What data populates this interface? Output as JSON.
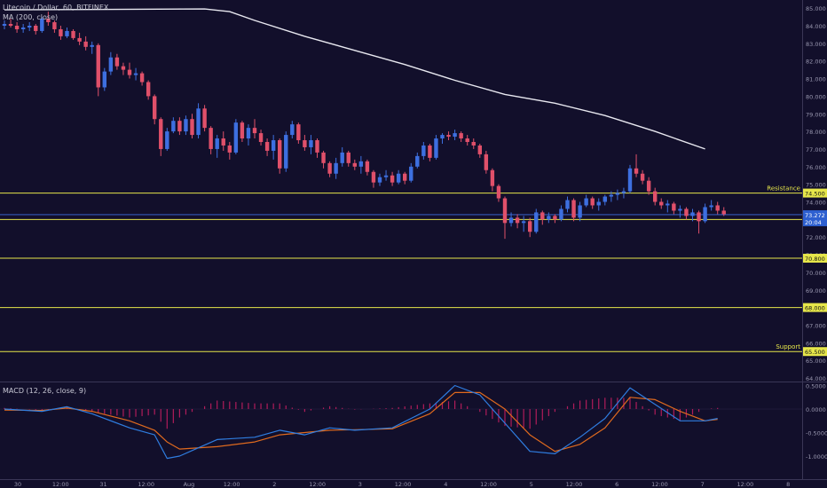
{
  "header": {
    "symbol": "Litecoin / Dollar, 60, BITFINEX",
    "ma_label": "MA (200, close)"
  },
  "macd_label": "MACD (12, 26, close, 9)",
  "colors": {
    "background": "#120f2b",
    "up_candle": "#3d6fe0",
    "down_candle": "#e0506a",
    "ma_line": "#e8e8f0",
    "level_line": "#e6e64a",
    "price_line": "#3d6fe0",
    "macd_line": "#2f7de0",
    "signal_line": "#e06a1e",
    "histogram": "#b01c5a"
  },
  "chart_data": [
    {
      "type": "candlestick",
      "panel": "price",
      "ylim": [
        63,
        85
      ],
      "y_ticks": [
        "64.000",
        "65.000",
        "66.000",
        "67.000",
        "68.000",
        "69.000",
        "70.000",
        "71.000",
        "72.000",
        "73.000",
        "74.000",
        "75.000",
        "76.000",
        "77.000",
        "78.000",
        "79.000",
        "80.000",
        "81.000",
        "82.000",
        "83.000",
        "84.000",
        "85.000"
      ],
      "x_ticks": [
        "30",
        "12:00",
        "31",
        "12:00",
        "Aug",
        "12:00",
        "2",
        "12:00",
        "3",
        "12:00",
        "4",
        "12:00",
        "5",
        "12:00",
        "6",
        "12:00",
        "7",
        "12:00",
        "8"
      ],
      "levels": [
        {
          "value": 74.5,
          "label": "74.500",
          "annotation": "Resistance"
        },
        {
          "value": 73.0,
          "label": "73.000",
          "annotation": ""
        },
        {
          "value": 70.8,
          "label": "70.800",
          "annotation": ""
        },
        {
          "value": 68.0,
          "label": "68.000",
          "annotation": ""
        },
        {
          "value": 65.5,
          "label": "65.500",
          "annotation": "Support"
        }
      ],
      "last_price": {
        "value": 73.272,
        "label": "73.272",
        "countdown": "20:04"
      },
      "moving_average": {
        "name": "MA (200, close)",
        "points": [
          [
            0,
            84.9
          ],
          [
            16,
            84.95
          ],
          [
            18,
            84.8
          ],
          [
            20,
            84.3
          ],
          [
            24,
            83.4
          ],
          [
            28,
            82.6
          ],
          [
            32,
            81.8
          ],
          [
            36,
            80.9
          ],
          [
            40,
            80.1
          ],
          [
            44,
            79.6
          ],
          [
            48,
            78.9
          ],
          [
            52,
            78.0
          ],
          [
            56,
            77.0
          ]
        ]
      },
      "candles": [
        [
          0.0,
          84.0,
          84.3,
          83.8,
          84.1
        ],
        [
          0.5,
          84.1,
          84.4,
          83.9,
          84.0
        ],
        [
          1.0,
          84.0,
          84.2,
          83.6,
          83.8
        ],
        [
          1.5,
          83.8,
          84.1,
          83.6,
          83.9
        ],
        [
          2.0,
          83.9,
          84.2,
          83.7,
          84.0
        ],
        [
          2.5,
          84.0,
          84.1,
          83.5,
          83.7
        ],
        [
          3.0,
          83.7,
          84.5,
          83.6,
          84.4
        ],
        [
          3.5,
          84.4,
          84.8,
          84.0,
          84.2
        ],
        [
          4.0,
          84.2,
          84.3,
          83.6,
          83.8
        ],
        [
          4.5,
          83.8,
          84.0,
          83.2,
          83.4
        ],
        [
          5.0,
          83.4,
          83.9,
          83.3,
          83.7
        ],
        [
          5.5,
          83.7,
          83.8,
          83.2,
          83.3
        ],
        [
          6.0,
          83.3,
          83.6,
          82.9,
          83.1
        ],
        [
          6.5,
          83.1,
          83.4,
          82.6,
          82.8
        ],
        [
          7.0,
          82.8,
          83.1,
          82.4,
          82.9
        ],
        [
          7.5,
          82.9,
          83.0,
          80.0,
          80.5
        ],
        [
          8.0,
          80.5,
          81.6,
          80.3,
          81.4
        ],
        [
          8.5,
          81.4,
          82.5,
          81.2,
          82.2
        ],
        [
          9.0,
          82.2,
          82.4,
          81.5,
          81.7
        ],
        [
          9.5,
          81.7,
          81.9,
          81.2,
          81.5
        ],
        [
          10.0,
          81.5,
          81.9,
          81.0,
          81.2
        ],
        [
          10.5,
          81.2,
          81.6,
          80.9,
          81.3
        ],
        [
          11.0,
          81.3,
          81.4,
          80.6,
          80.8
        ],
        [
          11.5,
          80.8,
          80.9,
          79.8,
          80.0
        ],
        [
          12.0,
          80.0,
          80.1,
          78.4,
          78.7
        ],
        [
          12.5,
          78.7,
          78.8,
          76.6,
          77.0
        ],
        [
          13.0,
          77.0,
          78.2,
          76.9,
          78.0
        ],
        [
          13.5,
          78.0,
          78.8,
          77.9,
          78.6
        ],
        [
          14.0,
          78.6,
          78.8,
          77.8,
          78.0
        ],
        [
          14.5,
          78.0,
          78.9,
          77.8,
          78.7
        ],
        [
          15.0,
          78.7,
          79.0,
          77.6,
          77.8
        ],
        [
          15.5,
          77.8,
          79.6,
          77.6,
          79.3
        ],
        [
          16.0,
          79.3,
          79.5,
          78.0,
          78.2
        ],
        [
          16.5,
          78.2,
          78.3,
          76.7,
          77.0
        ],
        [
          17.0,
          77.0,
          77.8,
          76.5,
          77.6
        ],
        [
          17.5,
          77.6,
          78.0,
          76.9,
          77.2
        ],
        [
          18.0,
          77.2,
          77.4,
          76.4,
          76.8
        ],
        [
          18.5,
          76.8,
          78.7,
          76.7,
          78.5
        ],
        [
          19.0,
          78.5,
          78.6,
          77.4,
          77.6
        ],
        [
          19.5,
          77.6,
          78.4,
          77.2,
          78.2
        ],
        [
          20.0,
          78.2,
          78.7,
          77.6,
          77.9
        ],
        [
          20.5,
          77.9,
          78.1,
          77.2,
          77.4
        ],
        [
          21.0,
          77.4,
          77.6,
          76.6,
          76.9
        ],
        [
          21.5,
          76.9,
          77.8,
          76.4,
          77.5
        ],
        [
          22.0,
          77.5,
          77.6,
          75.6,
          75.9
        ],
        [
          22.5,
          75.9,
          78.0,
          75.7,
          77.8
        ],
        [
          23.0,
          77.8,
          78.6,
          77.6,
          78.4
        ],
        [
          23.5,
          78.4,
          78.5,
          77.3,
          77.5
        ],
        [
          24.0,
          77.5,
          77.8,
          76.9,
          77.1
        ],
        [
          24.5,
          77.1,
          77.8,
          76.7,
          77.5
        ],
        [
          25.0,
          77.5,
          77.6,
          76.5,
          76.8
        ],
        [
          25.5,
          76.8,
          76.9,
          75.9,
          76.2
        ],
        [
          26.0,
          76.2,
          76.3,
          75.4,
          75.6
        ],
        [
          26.5,
          75.6,
          76.5,
          75.3,
          76.2
        ],
        [
          27.0,
          76.2,
          77.1,
          76.0,
          76.8
        ],
        [
          27.5,
          76.8,
          76.9,
          76.0,
          76.2
        ],
        [
          28.0,
          76.2,
          76.4,
          75.8,
          76.0
        ],
        [
          28.5,
          76.0,
          76.6,
          75.6,
          76.3
        ],
        [
          29.0,
          76.3,
          76.4,
          75.5,
          75.7
        ],
        [
          29.5,
          75.7,
          75.8,
          74.8,
          75.1
        ],
        [
          30.0,
          75.1,
          75.6,
          74.9,
          75.4
        ],
        [
          30.5,
          75.4,
          75.8,
          75.2,
          75.5
        ],
        [
          31.0,
          75.5,
          75.7,
          74.9,
          75.1
        ],
        [
          31.5,
          75.1,
          75.8,
          75.0,
          75.6
        ],
        [
          32.0,
          75.6,
          75.7,
          75.0,
          75.2
        ],
        [
          32.5,
          75.2,
          76.2,
          75.1,
          76.0
        ],
        [
          33.0,
          76.0,
          76.8,
          75.9,
          76.6
        ],
        [
          33.5,
          76.6,
          77.4,
          76.4,
          77.2
        ],
        [
          34.0,
          77.2,
          77.3,
          76.3,
          76.5
        ],
        [
          34.5,
          76.5,
          77.8,
          76.4,
          77.6
        ],
        [
          35.0,
          77.6,
          77.9,
          77.3,
          77.8
        ],
        [
          35.5,
          77.8,
          78.0,
          77.5,
          77.7
        ],
        [
          36.0,
          77.7,
          78.1,
          77.5,
          77.9
        ],
        [
          36.5,
          77.9,
          78.0,
          77.4,
          77.6
        ],
        [
          37.0,
          77.6,
          77.8,
          77.2,
          77.4
        ],
        [
          37.5,
          77.4,
          77.6,
          77.0,
          77.2
        ],
        [
          38.0,
          77.2,
          77.3,
          76.5,
          76.7
        ],
        [
          38.5,
          76.7,
          76.9,
          75.6,
          75.8
        ],
        [
          39.0,
          75.8,
          75.9,
          74.6,
          74.9
        ],
        [
          39.5,
          74.9,
          75.0,
          74.0,
          74.2
        ],
        [
          40.0,
          74.2,
          74.3,
          71.9,
          72.8
        ],
        [
          40.5,
          72.8,
          73.4,
          72.6,
          73.1
        ],
        [
          41.0,
          73.1,
          73.3,
          72.5,
          72.8
        ],
        [
          41.5,
          72.8,
          73.2,
          72.3,
          72.9
        ],
        [
          42.0,
          72.9,
          73.1,
          72.0,
          72.3
        ],
        [
          42.5,
          72.3,
          73.6,
          72.2,
          73.4
        ],
        [
          43.0,
          73.4,
          73.5,
          72.7,
          73.0
        ],
        [
          43.5,
          73.0,
          73.4,
          72.8,
          73.2
        ],
        [
          44.0,
          73.2,
          73.3,
          72.8,
          73.0
        ],
        [
          44.5,
          73.0,
          73.8,
          72.9,
          73.6
        ],
        [
          45.0,
          73.6,
          74.3,
          73.4,
          74.1
        ],
        [
          45.5,
          74.1,
          74.2,
          72.9,
          73.1
        ],
        [
          46.0,
          73.1,
          74.0,
          72.9,
          73.8
        ],
        [
          46.5,
          73.8,
          74.4,
          73.7,
          74.2
        ],
        [
          47.0,
          74.2,
          74.3,
          73.6,
          73.8
        ],
        [
          47.5,
          73.8,
          74.2,
          73.5,
          74.0
        ],
        [
          48.0,
          74.0,
          74.4,
          73.8,
          74.3
        ],
        [
          48.5,
          74.3,
          74.6,
          74.0,
          74.4
        ],
        [
          49.0,
          74.4,
          74.7,
          74.1,
          74.5
        ],
        [
          49.5,
          74.5,
          74.8,
          74.2,
          74.6
        ],
        [
          50.0,
          74.6,
          76.1,
          74.5,
          75.9
        ],
        [
          50.5,
          75.9,
          76.7,
          75.4,
          75.6
        ],
        [
          51.0,
          75.6,
          75.8,
          75.0,
          75.2
        ],
        [
          51.5,
          75.2,
          75.4,
          74.4,
          74.6
        ],
        [
          52.0,
          74.6,
          74.8,
          73.8,
          74.0
        ],
        [
          52.5,
          74.0,
          74.2,
          73.6,
          73.8
        ],
        [
          53.0,
          73.8,
          74.1,
          73.4,
          73.9
        ],
        [
          53.5,
          73.9,
          74.0,
          73.3,
          73.5
        ],
        [
          54.0,
          73.5,
          73.8,
          73.1,
          73.6
        ],
        [
          54.5,
          73.6,
          73.7,
          73.0,
          73.2
        ],
        [
          55.0,
          73.2,
          73.6,
          72.9,
          73.4
        ],
        [
          55.5,
          73.4,
          73.5,
          72.2,
          72.9
        ],
        [
          56.0,
          72.9,
          73.9,
          72.8,
          73.7
        ],
        [
          56.5,
          73.7,
          74.1,
          73.5,
          73.8
        ],
        [
          57.0,
          73.8,
          74.0,
          73.3,
          73.5
        ],
        [
          57.5,
          73.5,
          73.7,
          73.2,
          73.3
        ]
      ]
    },
    {
      "type": "line",
      "panel": "macd",
      "name": "MACD (12, 26, close, 9)",
      "ylim": [
        -1.25,
        0.6
      ],
      "y_ticks": [
        "0.5000",
        "0.0000",
        "-0.5000",
        "-1.0000"
      ],
      "series": [
        {
          "name": "MACD",
          "points": [
            [
              0,
              0.0
            ],
            [
              3,
              -0.05
            ],
            [
              5,
              0.05
            ],
            [
              7,
              -0.1
            ],
            [
              10,
              -0.4
            ],
            [
              12,
              -0.55
            ],
            [
              13,
              -1.05
            ],
            [
              14,
              -1.0
            ],
            [
              17,
              -0.65
            ],
            [
              20,
              -0.6
            ],
            [
              22,
              -0.45
            ],
            [
              24,
              -0.55
            ],
            [
              26,
              -0.4
            ],
            [
              28,
              -0.45
            ],
            [
              31,
              -0.4
            ],
            [
              34,
              0.0
            ],
            [
              36,
              0.5
            ],
            [
              38,
              0.3
            ],
            [
              40,
              -0.3
            ],
            [
              42,
              -0.9
            ],
            [
              44,
              -0.95
            ],
            [
              46,
              -0.6
            ],
            [
              48,
              -0.2
            ],
            [
              50,
              0.45
            ],
            [
              52,
              0.1
            ],
            [
              54,
              -0.25
            ],
            [
              56,
              -0.25
            ],
            [
              57,
              -0.2
            ]
          ]
        },
        {
          "name": "Signal",
          "points": [
            [
              0,
              -0.02
            ],
            [
              3,
              -0.03
            ],
            [
              5,
              0.02
            ],
            [
              7,
              -0.05
            ],
            [
              10,
              -0.25
            ],
            [
              12,
              -0.45
            ],
            [
              13,
              -0.7
            ],
            [
              14,
              -0.85
            ],
            [
              17,
              -0.8
            ],
            [
              20,
              -0.7
            ],
            [
              22,
              -0.55
            ],
            [
              24,
              -0.5
            ],
            [
              26,
              -0.45
            ],
            [
              28,
              -0.44
            ],
            [
              31,
              -0.42
            ],
            [
              34,
              -0.1
            ],
            [
              36,
              0.35
            ],
            [
              38,
              0.35
            ],
            [
              40,
              0.0
            ],
            [
              42,
              -0.55
            ],
            [
              44,
              -0.9
            ],
            [
              46,
              -0.75
            ],
            [
              48,
              -0.4
            ],
            [
              50,
              0.25
            ],
            [
              52,
              0.2
            ],
            [
              54,
              -0.05
            ],
            [
              56,
              -0.25
            ],
            [
              57,
              -0.22
            ]
          ]
        }
      ]
    }
  ]
}
